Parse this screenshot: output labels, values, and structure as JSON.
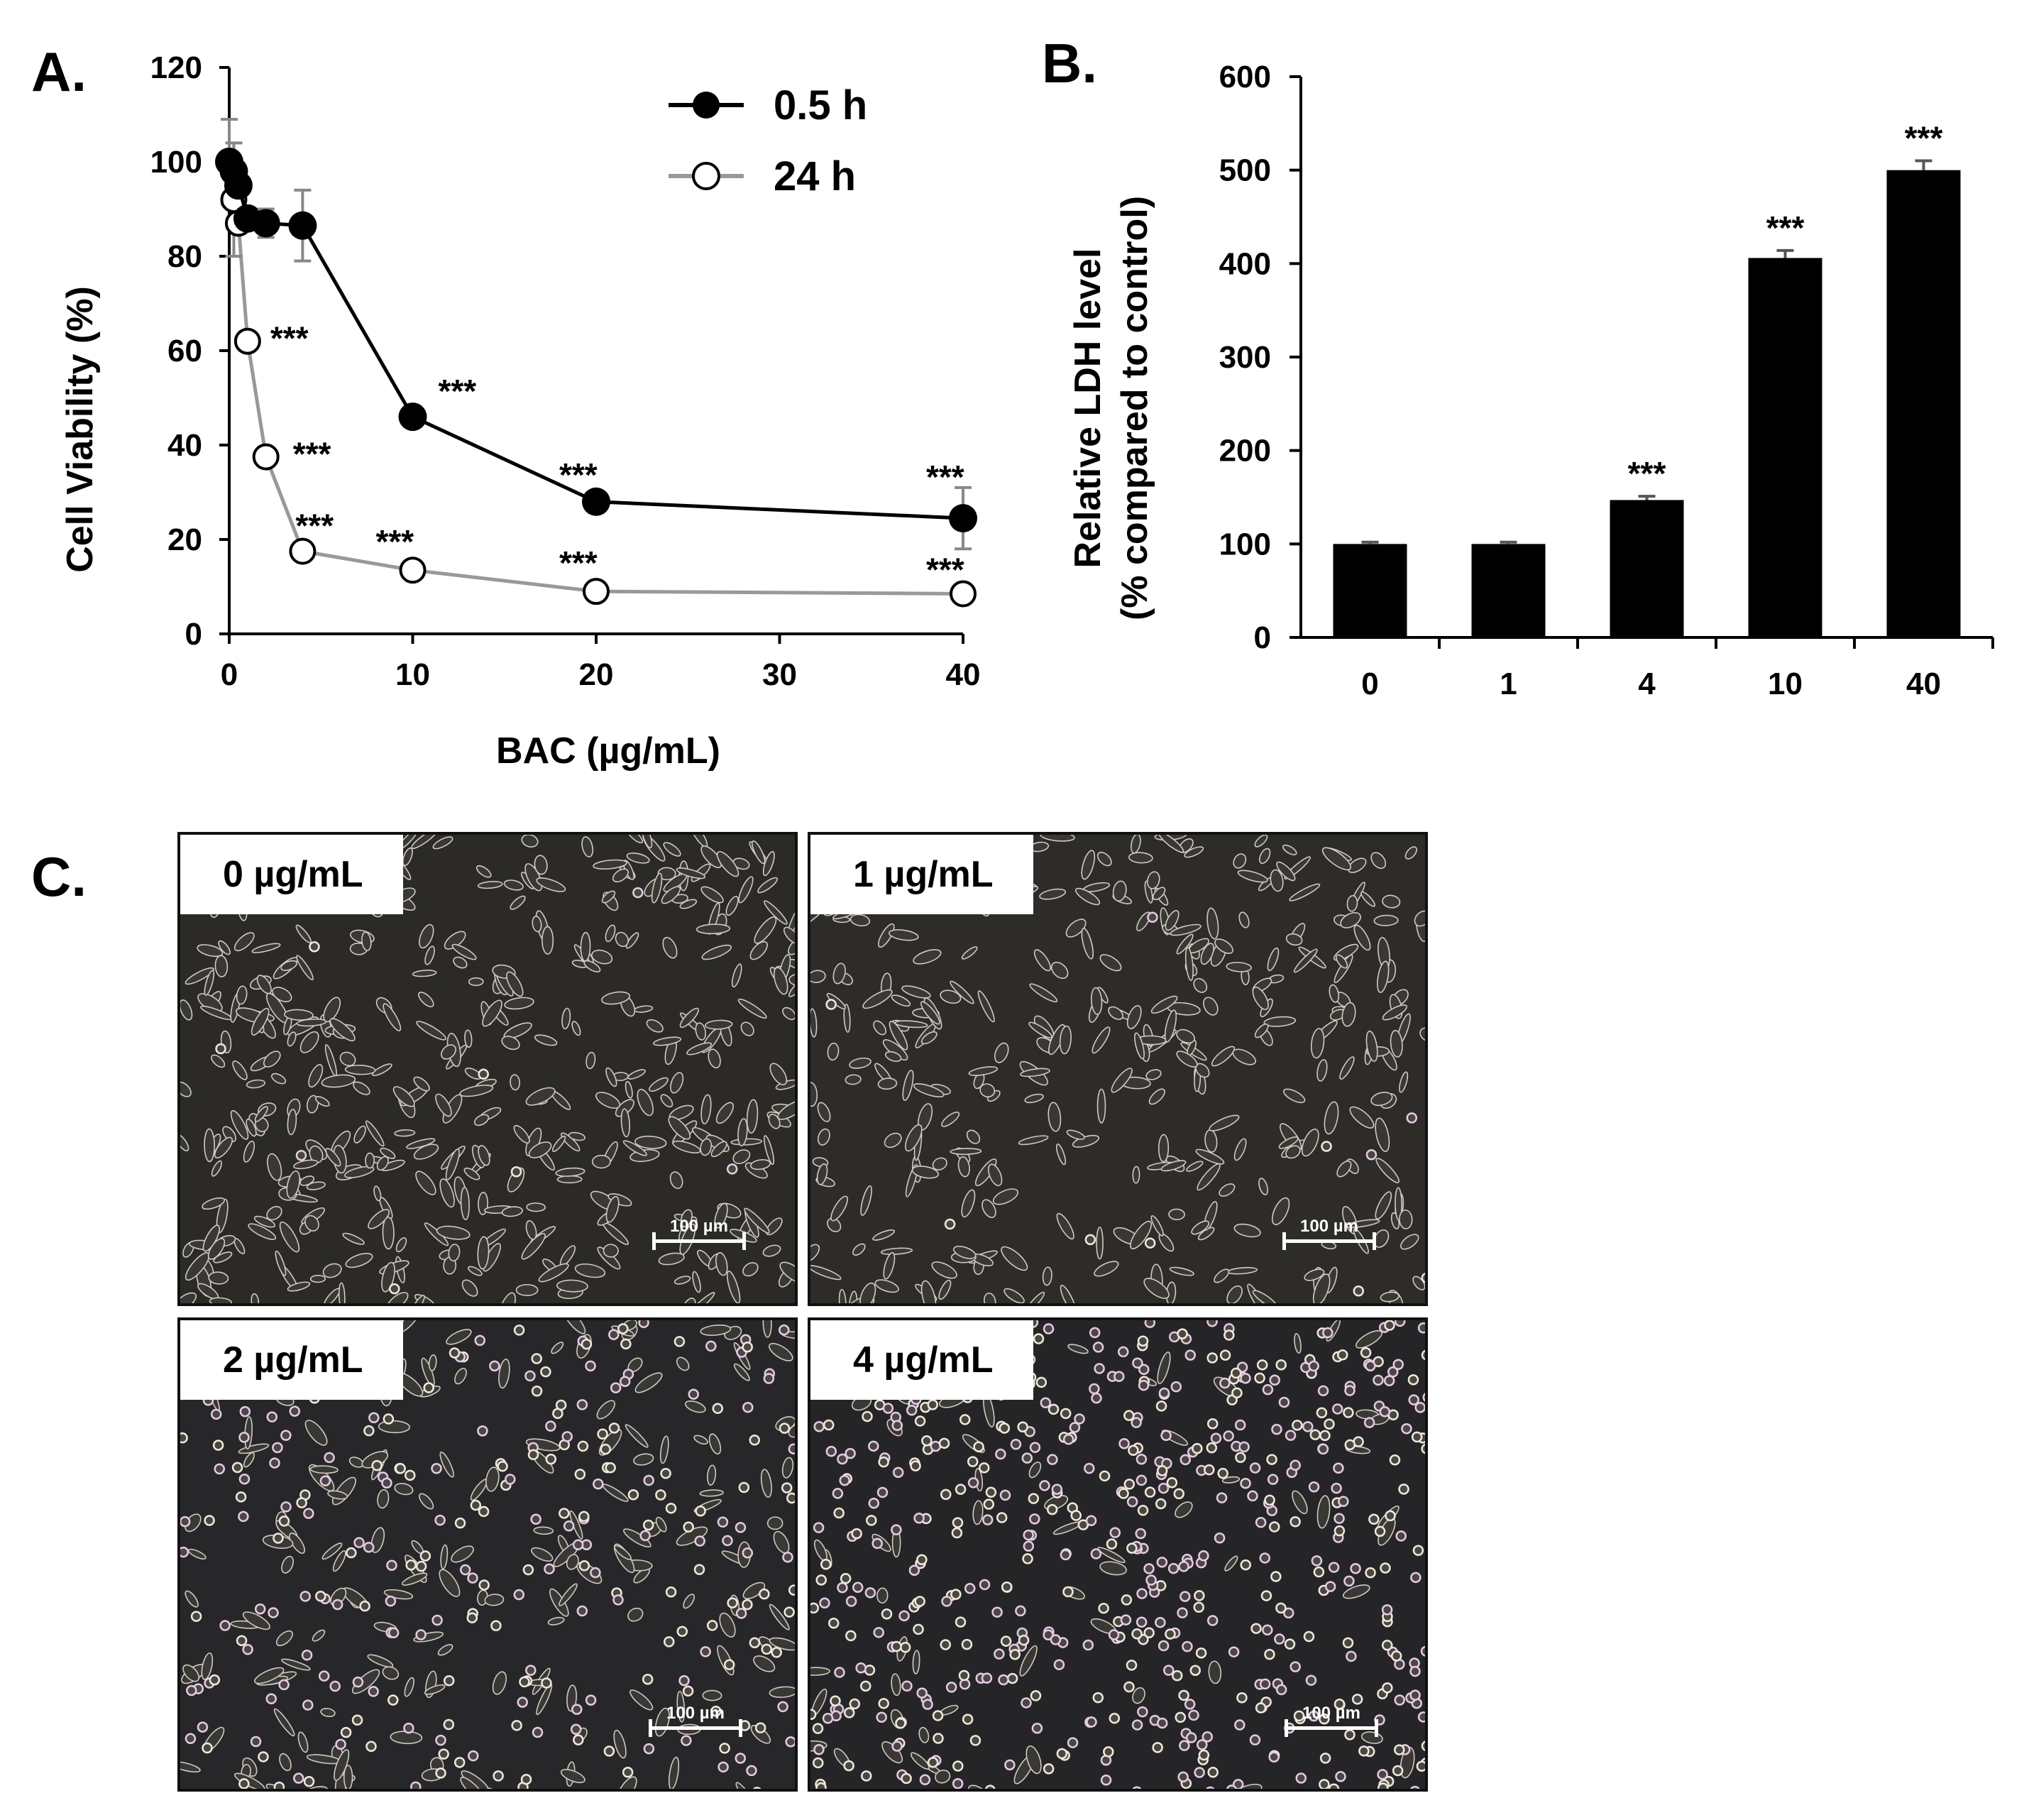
{
  "panels": {
    "a": {
      "letter": "A."
    },
    "b": {
      "letter": "B."
    },
    "c": {
      "letter": "C."
    }
  },
  "chart_data": [
    {
      "id": "A",
      "type": "line",
      "xlabel": "BAC (µg/mL)",
      "ylabel": "Cell Viability (%)",
      "xlim": [
        0,
        40
      ],
      "ylim": [
        0,
        120
      ],
      "xticks": [
        0,
        10,
        20,
        30,
        40
      ],
      "yticks": [
        0,
        20,
        40,
        60,
        80,
        100,
        120
      ],
      "legend_position": "top-right",
      "series": [
        {
          "name": "0.5 h",
          "marker": "filled-circle",
          "color": "#000000",
          "x": [
            0,
            0.25,
            0.5,
            1,
            2,
            4,
            10,
            20,
            40
          ],
          "y": [
            100,
            98,
            95,
            88,
            87,
            86.5,
            46,
            28,
            24.5
          ],
          "err": [
            0,
            0,
            0,
            0,
            3,
            7.5,
            0,
            0,
            6.5
          ],
          "sig": [
            "",
            "",
            "",
            "",
            "",
            "",
            "***",
            "***",
            "***"
          ]
        },
        {
          "name": "24 h",
          "marker": "open-circle",
          "color": "#999999",
          "x": [
            0,
            0.25,
            0.5,
            1,
            2,
            4,
            10,
            20,
            40
          ],
          "y": [
            100,
            92,
            87,
            62,
            37.5,
            17.5,
            13.5,
            9,
            8.5
          ],
          "err": [
            9,
            12,
            0,
            0,
            0,
            0,
            0,
            0,
            0
          ],
          "sig": [
            "",
            "",
            "",
            "***",
            "***",
            "***",
            "***",
            "***",
            "***"
          ]
        }
      ]
    },
    {
      "id": "B",
      "type": "bar",
      "ylabel_line1": "Relative LDH level",
      "ylabel_line2": "(% compared to control)",
      "ylim": [
        0,
        600
      ],
      "yticks": [
        0,
        100,
        200,
        300,
        400,
        500,
        600
      ],
      "categories": [
        "0",
        "1",
        "4",
        "10",
        "40"
      ],
      "values": [
        100,
        100,
        147,
        406,
        500
      ],
      "err": [
        2,
        2,
        4,
        8,
        10
      ],
      "sig": [
        "",
        "",
        "***",
        "***",
        "***"
      ]
    }
  ],
  "micrographs": [
    {
      "label": "0 µg/mL",
      "scale": "100 µm",
      "density": "confluent"
    },
    {
      "label": "1 µg/mL",
      "scale": "100 µm",
      "density": "confluent-gaps"
    },
    {
      "label": "2 µg/mL",
      "scale": "100 µm",
      "density": "mixed-rounded"
    },
    {
      "label": "4 µg/mL",
      "scale": "100 µm",
      "density": "rounded"
    }
  ]
}
